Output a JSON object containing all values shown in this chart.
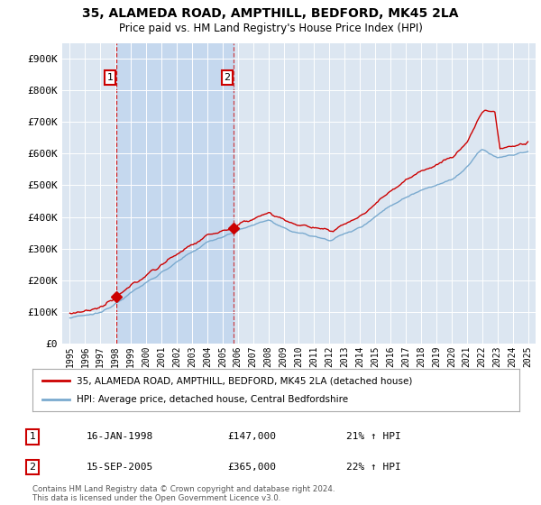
{
  "title_line1": "35, ALAMEDA ROAD, AMPTHILL, BEDFORD, MK45 2LA",
  "title_line2": "Price paid vs. HM Land Registry's House Price Index (HPI)",
  "yticks": [
    0,
    100000,
    200000,
    300000,
    400000,
    500000,
    600000,
    700000,
    800000,
    900000
  ],
  "ytick_labels": [
    "£0",
    "£100K",
    "£200K",
    "£300K",
    "£400K",
    "£500K",
    "£600K",
    "£700K",
    "£800K",
    "£900K"
  ],
  "legend_label_red": "35, ALAMEDA ROAD, AMPTHILL, BEDFORD, MK45 2LA (detached house)",
  "legend_label_blue": "HPI: Average price, detached house, Central Bedfordshire",
  "footer": "Contains HM Land Registry data © Crown copyright and database right 2024.\nThis data is licensed under the Open Government Licence v3.0.",
  "annotation1_date": "16-JAN-1998",
  "annotation1_price": "£147,000",
  "annotation1_hpi": "21% ↑ HPI",
  "annotation2_date": "15-SEP-2005",
  "annotation2_price": "£365,000",
  "annotation2_hpi": "22% ↑ HPI",
  "sale1_year": 1998.04,
  "sale1_value": 147000,
  "sale2_year": 2005.71,
  "sale2_value": 365000,
  "bg_color": "#ffffff",
  "plot_bg_color": "#dce6f1",
  "shade_color": "#c5d8ee",
  "grid_color": "#ffffff",
  "red_color": "#cc0000",
  "blue_color": "#7aaacf",
  "annotation_box_color": "#cc0000"
}
